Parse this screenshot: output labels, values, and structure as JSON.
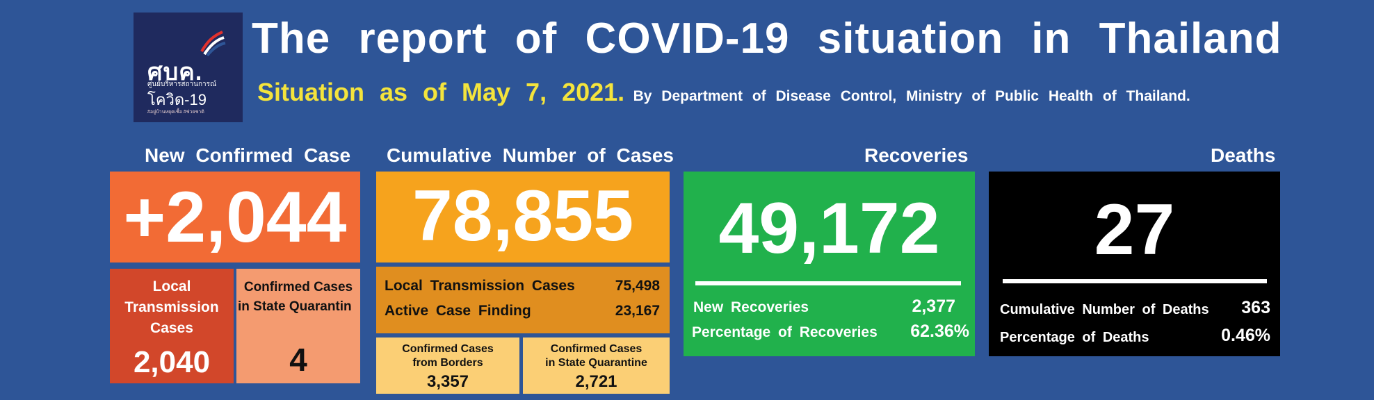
{
  "logo": {
    "mark": "ศบค.",
    "line1": "ศูนย์บริหารสถานการณ์",
    "line2": "โควิด-19",
    "line3": "#อยู่บ้านหยุดเชื้อ #ช่วยชาติ"
  },
  "header": {
    "title": "The report of COVID-19 situation in Thailand",
    "situation": "Situation as of May 7, 2021.",
    "source": "By Department of Disease Control, Ministry of Public Health of Thailand."
  },
  "new_confirmed": {
    "heading": "New Confirmed Case",
    "value": "+2,044",
    "local_label_1": "Local",
    "local_label_2": "Transmission",
    "local_label_3": "Cases",
    "local_value": "2,040",
    "sq_label_1": "Confirmed Cases",
    "sq_label_2": "in State Quarantin",
    "sq_value": "4"
  },
  "cumulative": {
    "heading": "Cumulative Number of Cases",
    "value": "78,855",
    "local_label": "Local Transmission Cases",
    "local_value": "75,498",
    "acf_label": "Active Case Finding",
    "acf_value": "23,167",
    "borders_label_1": "Confirmed Cases",
    "borders_label_2": "from Borders",
    "borders_value": "3,357",
    "sq_label_1": "Confirmed Cases",
    "sq_label_2": "in State Quarantine",
    "sq_value": "2,721"
  },
  "recoveries": {
    "heading": "Recoveries",
    "value": "49,172",
    "new_label": "New Recoveries",
    "new_value": "2,377",
    "pct_label": "Percentage of Recoveries",
    "pct_value": "62.36%"
  },
  "deaths": {
    "heading": "Deaths",
    "value": "27",
    "cum_label": "Cumulative Number of Deaths",
    "cum_value": "363",
    "pct_label": "Percentage of Deaths",
    "pct_value": "0.46%"
  },
  "colors": {
    "background": "#2e5597",
    "new_case": "#f26b35",
    "new_case_local": "#d2472a",
    "new_case_quarantine": "#f49b70",
    "cumulative": "#f6a31d",
    "cumulative_detail": "#e08e1f",
    "cumulative_sub": "#fbcf75",
    "recoveries": "#21b14c",
    "deaths": "#000000",
    "highlight": "#f4e43c"
  }
}
